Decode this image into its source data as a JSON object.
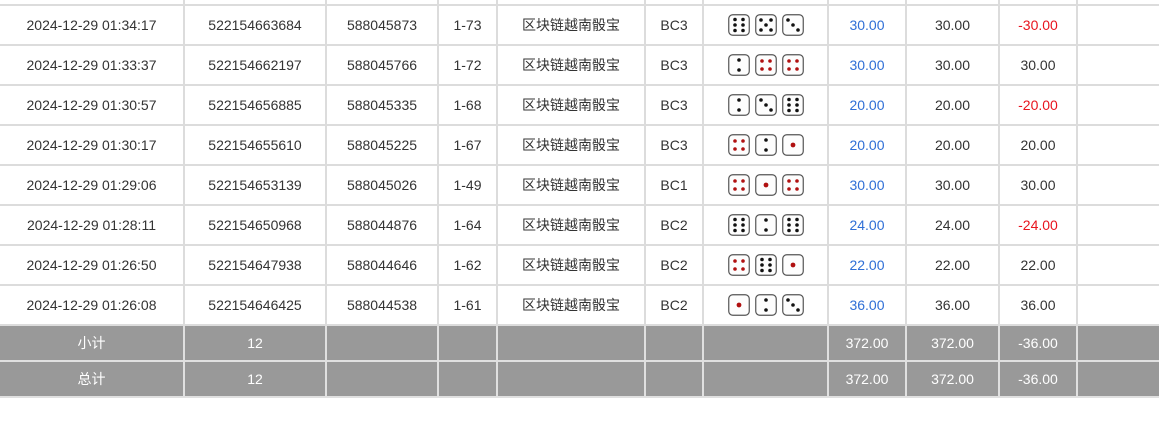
{
  "colors": {
    "blue": "#2f6fd6",
    "red": "#e8141e",
    "summary_bg": "#999999"
  },
  "rows": [
    {
      "time": "2024-12-29 01:34:17",
      "order": "522154663684",
      "bet_id": "588045873",
      "issue": "1-73",
      "game": "区块链越南骰宝",
      "table": "BC3",
      "dice": [
        6,
        5,
        3
      ],
      "bet": "30.00",
      "valid": "30.00",
      "win": "-30.00"
    },
    {
      "time": "2024-12-29 01:33:37",
      "order": "522154662197",
      "bet_id": "588045766",
      "issue": "1-72",
      "game": "区块链越南骰宝",
      "table": "BC3",
      "dice": [
        2,
        4,
        4
      ],
      "bet": "30.00",
      "valid": "30.00",
      "win": "30.00"
    },
    {
      "time": "2024-12-29 01:30:57",
      "order": "522154656885",
      "bet_id": "588045335",
      "issue": "1-68",
      "game": "区块链越南骰宝",
      "table": "BC3",
      "dice": [
        2,
        3,
        6
      ],
      "bet": "20.00",
      "valid": "20.00",
      "win": "-20.00"
    },
    {
      "time": "2024-12-29 01:30:17",
      "order": "522154655610",
      "bet_id": "588045225",
      "issue": "1-67",
      "game": "区块链越南骰宝",
      "table": "BC3",
      "dice": [
        4,
        2,
        1
      ],
      "bet": "20.00",
      "valid": "20.00",
      "win": "20.00"
    },
    {
      "time": "2024-12-29 01:29:06",
      "order": "522154653139",
      "bet_id": "588045026",
      "issue": "1-49",
      "game": "区块链越南骰宝",
      "table": "BC1",
      "dice": [
        4,
        1,
        4
      ],
      "bet": "30.00",
      "valid": "30.00",
      "win": "30.00"
    },
    {
      "time": "2024-12-29 01:28:11",
      "order": "522154650968",
      "bet_id": "588044876",
      "issue": "1-64",
      "game": "区块链越南骰宝",
      "table": "BC2",
      "dice": [
        6,
        2,
        6
      ],
      "bet": "24.00",
      "valid": "24.00",
      "win": "-24.00"
    },
    {
      "time": "2024-12-29 01:26:50",
      "order": "522154647938",
      "bet_id": "588044646",
      "issue": "1-62",
      "game": "区块链越南骰宝",
      "table": "BC2",
      "dice": [
        4,
        6,
        1
      ],
      "bet": "22.00",
      "valid": "22.00",
      "win": "22.00"
    },
    {
      "time": "2024-12-29 01:26:08",
      "order": "522154646425",
      "bet_id": "588044538",
      "issue": "1-61",
      "game": "区块链越南骰宝",
      "table": "BC2",
      "dice": [
        1,
        2,
        3
      ],
      "bet": "36.00",
      "valid": "36.00",
      "win": "36.00"
    }
  ],
  "subtotal": {
    "label": "小计",
    "count": "12",
    "bet": "372.00",
    "valid": "372.00",
    "win": "-36.00"
  },
  "total": {
    "label": "总计",
    "count": "12",
    "bet": "372.00",
    "valid": "372.00",
    "win": "-36.00"
  }
}
